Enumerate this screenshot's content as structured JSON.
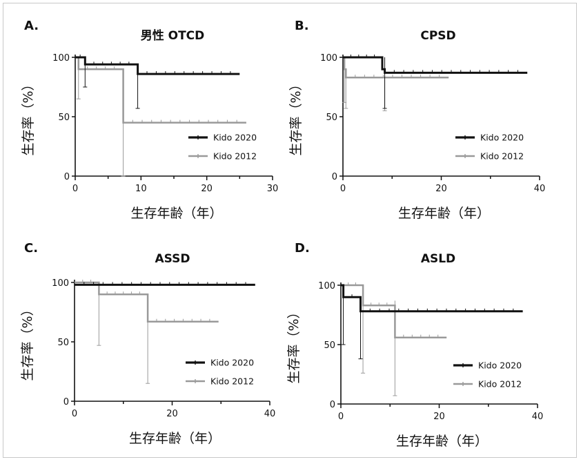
{
  "colors": {
    "kido2020": "#111111",
    "kido2012": "#999999",
    "axis": "#111111"
  },
  "chart_data": [
    {
      "type": "line",
      "step": true,
      "letter": "A.",
      "title": "男性 OTCD",
      "xlabel": "生存年齢（年）",
      "ylabel": "生存率（%）",
      "xlim": [
        0,
        30
      ],
      "ylim": [
        0,
        100
      ],
      "xticks": [
        "0",
        "10",
        "20",
        "30"
      ],
      "yticks": [
        "0",
        "50",
        "100"
      ],
      "legend_position": "bottom-right",
      "series": [
        {
          "name": "Kido 2020",
          "x": [
            0,
            1.5,
            1.5,
            9.5,
            9.5,
            25
          ],
          "y": [
            100,
            100,
            94,
            94,
            86,
            86
          ],
          "error_bars": [
            {
              "x": 1.5,
              "low": 75,
              "high": 100
            },
            {
              "x": 9.5,
              "low": 57,
              "high": 94
            }
          ]
        },
        {
          "name": "Kido 2012",
          "x": [
            0,
            0.5,
            0.5,
            7.3,
            7.3,
            26
          ],
          "y": [
            100,
            100,
            90,
            90,
            45,
            45
          ],
          "error_bars": [
            {
              "x": 0.5,
              "low": 65,
              "high": 100
            },
            {
              "x": 7.3,
              "low": 0,
              "high": 90
            }
          ]
        }
      ]
    },
    {
      "type": "line",
      "step": true,
      "letter": "B.",
      "title": "CPSD",
      "xlabel": "生存年齢（年）",
      "ylabel": "生存率（%）",
      "xlim": [
        0,
        40
      ],
      "ylim": [
        0,
        100
      ],
      "xticks": [
        "0",
        "20",
        "40"
      ],
      "yticks": [
        "0",
        "50",
        "100"
      ],
      "legend_position": "bottom-right",
      "series": [
        {
          "name": "Kido 2020",
          "x": [
            0,
            8,
            8,
            8.5,
            8.5,
            37.5
          ],
          "y": [
            100,
            100,
            90,
            90,
            87,
            87
          ],
          "error_bars": [
            {
              "x": 8.5,
              "low": 57,
              "high": 100
            }
          ]
        },
        {
          "name": "Kido 2012",
          "x": [
            0,
            0.3,
            0.3,
            0.6,
            0.6,
            21.5
          ],
          "y": [
            100,
            100,
            90,
            90,
            83,
            83
          ],
          "error_bars": [
            {
              "x": 0.3,
              "low": 62,
              "high": 100
            },
            {
              "x": 0.6,
              "low": 57,
              "high": 90
            },
            {
              "x": 8.5,
              "low": 55,
              "high": 83
            }
          ]
        }
      ]
    },
    {
      "type": "line",
      "step": true,
      "letter": "C.",
      "title": "ASSD",
      "xlabel": "生存年齢（年）",
      "ylabel": "生存率（%）",
      "xlim": [
        0,
        40
      ],
      "ylim": [
        0,
        100
      ],
      "xticks": [
        "0",
        "20",
        "40"
      ],
      "yticks": [
        "0",
        "50",
        "100"
      ],
      "legend_position": "bottom-right",
      "series": [
        {
          "name": "Kido 2020",
          "x": [
            0,
            37
          ],
          "y": [
            98,
            98
          ],
          "error_bars": []
        },
        {
          "name": "Kido 2012",
          "x": [
            0,
            5,
            5,
            15,
            15,
            29.5
          ],
          "y": [
            100,
            100,
            90,
            90,
            67,
            67
          ],
          "error_bars": [
            {
              "x": 5,
              "low": 47,
              "high": 100
            },
            {
              "x": 15,
              "low": 15,
              "high": 90
            }
          ]
        }
      ]
    },
    {
      "type": "line",
      "step": true,
      "letter": "D.",
      "title": "ASLD",
      "xlabel": "生存年齢（年）",
      "ylabel": "生存率（%）",
      "xlim": [
        0,
        40
      ],
      "ylim": [
        0,
        100
      ],
      "xticks": [
        "0",
        "20",
        "40"
      ],
      "yticks": [
        "0",
        "50",
        "100"
      ],
      "legend_position": "bottom-right",
      "series": [
        {
          "name": "Kido 2020",
          "x": [
            0,
            0.5,
            0.5,
            4,
            4,
            37
          ],
          "y": [
            100,
            100,
            90,
            90,
            78,
            78
          ],
          "error_bars": [
            {
              "x": 0.5,
              "low": 50,
              "high": 100
            },
            {
              "x": 4,
              "low": 38,
              "high": 90
            }
          ]
        },
        {
          "name": "Kido 2012",
          "x": [
            0,
            4.5,
            4.5,
            11,
            11,
            21.5
          ],
          "y": [
            100,
            100,
            83,
            83,
            56,
            56
          ],
          "error_bars": [
            {
              "x": 4.5,
              "low": 26,
              "high": 100
            },
            {
              "x": 11,
              "low": 7,
              "high": 87
            }
          ]
        }
      ]
    }
  ]
}
